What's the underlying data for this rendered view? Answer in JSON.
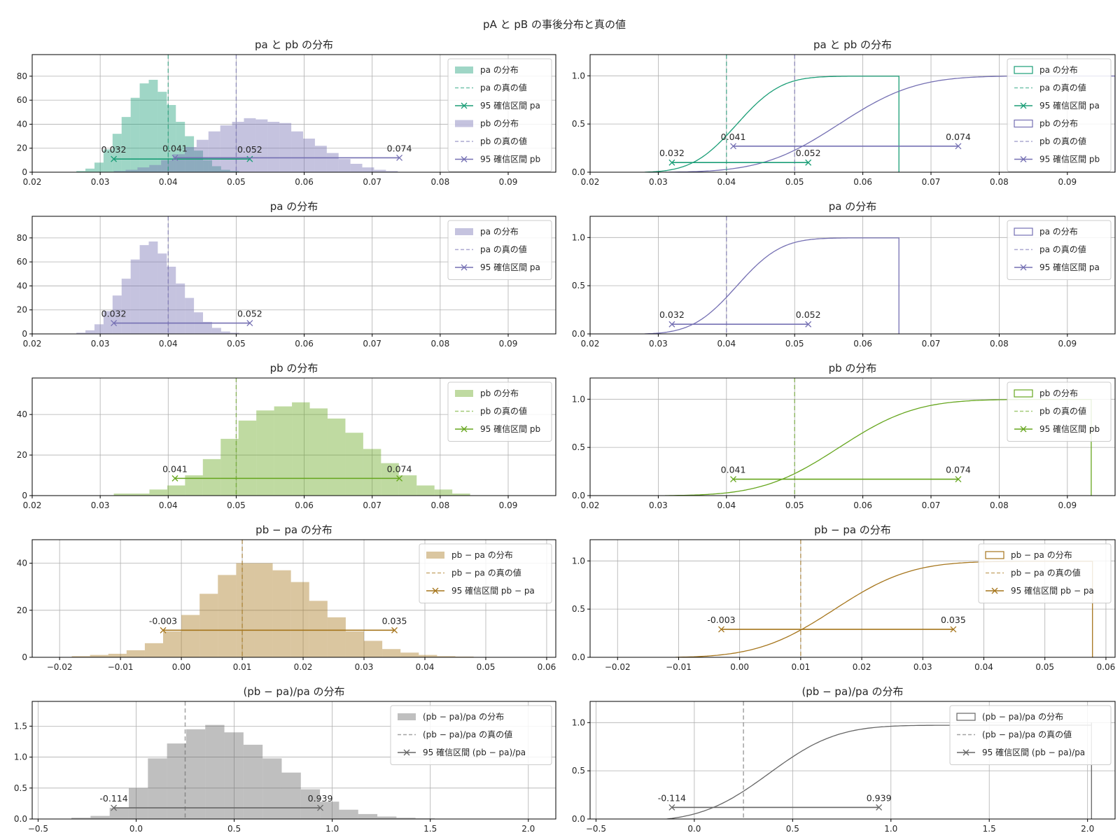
{
  "figure": {
    "suptitle": "pA と pB の事後分布と真の値",
    "colors": {
      "green": "#1b9e77",
      "purple": "#7570b3",
      "lime": "#66a61e",
      "gold": "#a6761d",
      "gray": "#666666"
    }
  },
  "chart_data": [
    {
      "id": "both-hist",
      "type": "bar",
      "title": "pa と pb の分布",
      "xlim": [
        0.02,
        0.097
      ],
      "ylim": [
        0,
        98
      ],
      "xticks": [
        "0.02",
        "0.03",
        "0.04",
        "0.05",
        "0.06",
        "0.07",
        "0.08",
        "0.09"
      ],
      "yticks": [
        "0",
        "20",
        "40",
        "60",
        "80"
      ],
      "series": [
        {
          "name": "pa の分布",
          "color": "green",
          "kind": "hist",
          "bin_start": 0.0265,
          "bin_width": 0.00133,
          "values": [
            1,
            3,
            8,
            19,
            32,
            46,
            62,
            74,
            77,
            67,
            56,
            42,
            30,
            18,
            10,
            5,
            2,
            1
          ]
        },
        {
          "name": "pb の分布",
          "color": "purple",
          "kind": "hist",
          "bin_start": 0.032,
          "bin_width": 0.00174,
          "values": [
            1,
            2,
            4,
            6,
            10,
            15,
            21,
            27,
            34,
            39,
            42,
            45,
            44,
            42,
            41,
            34,
            28,
            22,
            16,
            11,
            7,
            4,
            2,
            1
          ]
        }
      ],
      "true_values": [
        {
          "name": "pa の真の値",
          "color": "green",
          "x": 0.04
        },
        {
          "name": "pb の真の値",
          "color": "purple",
          "x": 0.05
        }
      ],
      "intervals": [
        {
          "name": "95 確信区間 pa",
          "color": "green",
          "x": [
            0.032,
            0.052
          ],
          "y": 11,
          "labels": [
            "0.032",
            "0.052"
          ]
        },
        {
          "name": "95 確信区間 pb",
          "color": "purple",
          "x": [
            0.041,
            0.074
          ],
          "y": 12,
          "labels": [
            "0.041",
            "0.074"
          ]
        }
      ],
      "legend": "top-right"
    },
    {
      "id": "both-cdf",
      "type": "line",
      "title": "pa と pb の分布",
      "xlim": [
        0.02,
        0.097
      ],
      "ylim": [
        0,
        1.22
      ],
      "xticks": [
        "0.02",
        "0.03",
        "0.04",
        "0.05",
        "0.06",
        "0.07",
        "0.08",
        "0.09"
      ],
      "yticks": [
        "0.0",
        "0.5",
        "1.0"
      ],
      "series": [
        {
          "name": "pa の分布",
          "color": "green",
          "kind": "cdf",
          "mean": 0.0415,
          "sd": 0.0051,
          "x_start": 0.028,
          "x_end": 0.0653
        },
        {
          "name": "pb の分布",
          "color": "purple",
          "kind": "cdf",
          "mean": 0.0565,
          "sd": 0.0088,
          "x_start": 0.031,
          "x_end": 0.097
        }
      ],
      "true_values": [
        {
          "name": "pa の真の値",
          "color": "green",
          "x": 0.04
        },
        {
          "name": "pb の真の値",
          "color": "purple",
          "x": 0.05
        }
      ],
      "intervals": [
        {
          "name": "95 確信区間 pa",
          "color": "green",
          "x": [
            0.032,
            0.052
          ],
          "y": 0.1,
          "labels": [
            "0.032",
            "0.052"
          ]
        },
        {
          "name": "95 確信区間 pb",
          "color": "purple",
          "x": [
            0.041,
            0.074
          ],
          "y": 0.27,
          "labels": [
            "0.041",
            "0.074"
          ]
        }
      ],
      "legend": "top-right"
    },
    {
      "id": "pa-hist",
      "type": "bar",
      "title": "pa の分布",
      "xlim": [
        0.02,
        0.097
      ],
      "ylim": [
        0,
        98
      ],
      "xticks": [
        "0.02",
        "0.03",
        "0.04",
        "0.05",
        "0.06",
        "0.07",
        "0.08",
        "0.09"
      ],
      "yticks": [
        "0",
        "20",
        "40",
        "60",
        "80"
      ],
      "series": [
        {
          "name": "pa の分布",
          "color": "purple",
          "kind": "hist",
          "bin_start": 0.0265,
          "bin_width": 0.00133,
          "values": [
            1,
            3,
            8,
            19,
            32,
            46,
            62,
            74,
            77,
            67,
            56,
            42,
            30,
            18,
            10,
            5,
            2,
            1
          ]
        }
      ],
      "true_values": [
        {
          "name": "pa の真の値",
          "color": "purple",
          "x": 0.04
        }
      ],
      "intervals": [
        {
          "name": "95 確信区間 pa",
          "color": "purple",
          "x": [
            0.032,
            0.052
          ],
          "y": 9,
          "labels": [
            "0.032",
            "0.052"
          ]
        }
      ],
      "legend": "top-right"
    },
    {
      "id": "pa-cdf",
      "type": "line",
      "title": "pa の分布",
      "xlim": [
        0.02,
        0.097
      ],
      "ylim": [
        0,
        1.22
      ],
      "xticks": [
        "0.02",
        "0.03",
        "0.04",
        "0.05",
        "0.06",
        "0.07",
        "0.08",
        "0.09"
      ],
      "yticks": [
        "0.0",
        "0.5",
        "1.0"
      ],
      "series": [
        {
          "name": "pa の分布",
          "color": "purple",
          "kind": "cdf",
          "mean": 0.0415,
          "sd": 0.0051,
          "x_start": 0.028,
          "x_end": 0.0653
        }
      ],
      "true_values": [
        {
          "name": "pa の真の値",
          "color": "purple",
          "x": 0.04
        }
      ],
      "intervals": [
        {
          "name": "95 確信区間 pa",
          "color": "purple",
          "x": [
            0.032,
            0.052
          ],
          "y": 0.1,
          "labels": [
            "0.032",
            "0.052"
          ]
        }
      ],
      "legend": "top-right"
    },
    {
      "id": "pb-hist",
      "type": "bar",
      "title": "pb の分布",
      "xlim": [
        0.02,
        0.097
      ],
      "ylim": [
        0,
        58
      ],
      "xticks": [
        "0.02",
        "0.03",
        "0.04",
        "0.05",
        "0.06",
        "0.07",
        "0.08",
        "0.09"
      ],
      "yticks": [
        "0",
        "20",
        "40"
      ],
      "series": [
        {
          "name": "pb の分布",
          "color": "lime",
          "kind": "hist",
          "bin_start": 0.032,
          "bin_width": 0.00262,
          "values": [
            1,
            1,
            3,
            5,
            10,
            18,
            28,
            37,
            42,
            44,
            46,
            43,
            38,
            31,
            23,
            16,
            10,
            5,
            3,
            1
          ]
        }
      ],
      "true_values": [
        {
          "name": "pb の真の値",
          "color": "lime",
          "x": 0.05
        }
      ],
      "intervals": [
        {
          "name": "95 確信区間 pb",
          "color": "lime",
          "x": [
            0.041,
            0.074
          ],
          "y": 8.5,
          "labels": [
            "0.041",
            "0.074"
          ]
        }
      ],
      "legend": "top-right"
    },
    {
      "id": "pb-cdf",
      "type": "line",
      "title": "pb の分布",
      "xlim": [
        0.02,
        0.097
      ],
      "ylim": [
        0,
        1.22
      ],
      "xticks": [
        "0.02",
        "0.03",
        "0.04",
        "0.05",
        "0.06",
        "0.07",
        "0.08",
        "0.09"
      ],
      "yticks": [
        "0.0",
        "0.5",
        "1.0"
      ],
      "series": [
        {
          "name": "pb の分布",
          "color": "lime",
          "kind": "cdf",
          "mean": 0.0565,
          "sd": 0.0088,
          "x_start": 0.031,
          "x_end": 0.0935
        }
      ],
      "true_values": [
        {
          "name": "pb の真の値",
          "color": "lime",
          "x": 0.05
        }
      ],
      "intervals": [
        {
          "name": "95 確信区間 pb",
          "color": "lime",
          "x": [
            0.041,
            0.074
          ],
          "y": 0.17,
          "labels": [
            "0.041",
            "0.074"
          ]
        }
      ],
      "legend": "top-right"
    },
    {
      "id": "diff-hist",
      "type": "bar",
      "title": "pb − pa の分布",
      "xlim": [
        -0.0245,
        0.0615
      ],
      "ylim": [
        0,
        50
      ],
      "xticks": [
        "−0.02",
        "−0.01",
        "0.00",
        "0.01",
        "0.02",
        "0.03",
        "0.04",
        "0.05",
        "0.06"
      ],
      "xtick_values": [
        -0.02,
        -0.01,
        0,
        0.01,
        0.02,
        0.03,
        0.04,
        0.05,
        0.06
      ],
      "yticks": [
        "0",
        "20",
        "40"
      ],
      "series": [
        {
          "name": "pb − pa の分布",
          "color": "gold",
          "kind": "hist",
          "bin_start": -0.018,
          "bin_width": 0.003,
          "values": [
            0.5,
            1,
            1.5,
            3,
            6,
            11,
            18,
            27,
            35,
            40,
            40,
            37,
            32,
            24,
            17,
            11,
            7,
            3.5,
            2,
            1,
            0.5,
            0.3
          ]
        }
      ],
      "true_values": [
        {
          "name": "pb − pa の真の値",
          "color": "gold",
          "x": 0.01
        }
      ],
      "intervals": [
        {
          "name": "95 確信区間 pb − pa",
          "color": "gold",
          "x": [
            -0.003,
            0.035
          ],
          "y": 11.5,
          "labels": [
            "-0.003",
            "0.035"
          ]
        }
      ],
      "legend": "top-right"
    },
    {
      "id": "diff-cdf",
      "type": "line",
      "title": "pb − pa の分布",
      "xlim": [
        -0.0245,
        0.0615
      ],
      "ylim": [
        0,
        1.22
      ],
      "xticks": [
        "−0.02",
        "−0.01",
        "0.00",
        "0.01",
        "0.02",
        "0.03",
        "0.04",
        "0.05",
        "0.06"
      ],
      "xtick_values": [
        -0.02,
        -0.01,
        0,
        0.01,
        0.02,
        0.03,
        0.04,
        0.05,
        0.06
      ],
      "yticks": [
        "0.0",
        "0.5",
        "1.0"
      ],
      "series": [
        {
          "name": "pb − pa の分布",
          "color": "gold",
          "kind": "cdf",
          "mean": 0.0155,
          "sd": 0.0098,
          "x_start": -0.0105,
          "x_end": 0.0578
        }
      ],
      "true_values": [
        {
          "name": "pb − pa の真の値",
          "color": "gold",
          "x": 0.01
        }
      ],
      "intervals": [
        {
          "name": "95 確信区間 pb − pa",
          "color": "gold",
          "x": [
            -0.003,
            0.035
          ],
          "y": 0.29,
          "labels": [
            "-0.003",
            "0.035"
          ]
        }
      ],
      "legend": "top-right"
    },
    {
      "id": "rel-hist",
      "type": "bar",
      "title": "(pb − pa)/pa の分布",
      "xlim": [
        -0.53,
        2.14
      ],
      "ylim": [
        0,
        1.9
      ],
      "xticks": [
        "−0.5",
        "0.0",
        "0.5",
        "1.0",
        "1.5",
        "2.0"
      ],
      "xtick_values": [
        -0.5,
        0,
        0.5,
        1,
        1.5,
        2
      ],
      "yticks": [
        "0.0",
        "0.5",
        "1.0",
        "1.5"
      ],
      "ytick_values": [
        0,
        0.5,
        1,
        1.5
      ],
      "series": [
        {
          "name": "(pb − pa)/pa の分布",
          "color": "gray",
          "kind": "hist",
          "bin_start": -0.33,
          "bin_width": 0.0975,
          "values": [
            0.02,
            0.05,
            0.18,
            0.5,
            0.98,
            1.22,
            1.45,
            1.52,
            1.4,
            1.2,
            0.98,
            0.75,
            0.48,
            0.28,
            0.15,
            0.08,
            0.04,
            0.02,
            0.01
          ]
        }
      ],
      "true_values": [
        {
          "name": "(pb − pa)/pa の真の値",
          "color": "gray",
          "x": 0.25
        }
      ],
      "intervals": [
        {
          "name": "95 確信区間 (pb − pa)/pa",
          "color": "gray",
          "x": [
            -0.114,
            0.939
          ],
          "y": 0.18,
          "labels": [
            "-0.114",
            "0.939"
          ]
        }
      ],
      "legend": "top-right"
    },
    {
      "id": "rel-cdf",
      "type": "line",
      "title": "(pb − pa)/pa の分布",
      "xlim": [
        -0.53,
        2.14
      ],
      "ylim": [
        0,
        1.22
      ],
      "xticks": [
        "−0.5",
        "0.0",
        "0.5",
        "1.0",
        "1.5",
        "2.0"
      ],
      "xtick_values": [
        -0.5,
        0,
        0.5,
        1,
        1.5,
        2
      ],
      "yticks": [
        "0.0",
        "0.5",
        "1.0"
      ],
      "series": [
        {
          "name": "(pb − pa)/pa の分布",
          "color": "gray",
          "kind": "cdf",
          "mean": 0.38,
          "sd": 0.27,
          "x_start": -0.14,
          "x_end": 2.02
        }
      ],
      "true_values": [
        {
          "name": "(pb − pa)/pa の真の値",
          "color": "gray",
          "x": 0.25
        }
      ],
      "intervals": [
        {
          "name": "95 確信区間 (pb − pa)/pa",
          "color": "gray",
          "x": [
            -0.114,
            0.939
          ],
          "y": 0.12,
          "labels": [
            "-0.114",
            "0.939"
          ]
        }
      ],
      "legend": "top-right"
    }
  ]
}
